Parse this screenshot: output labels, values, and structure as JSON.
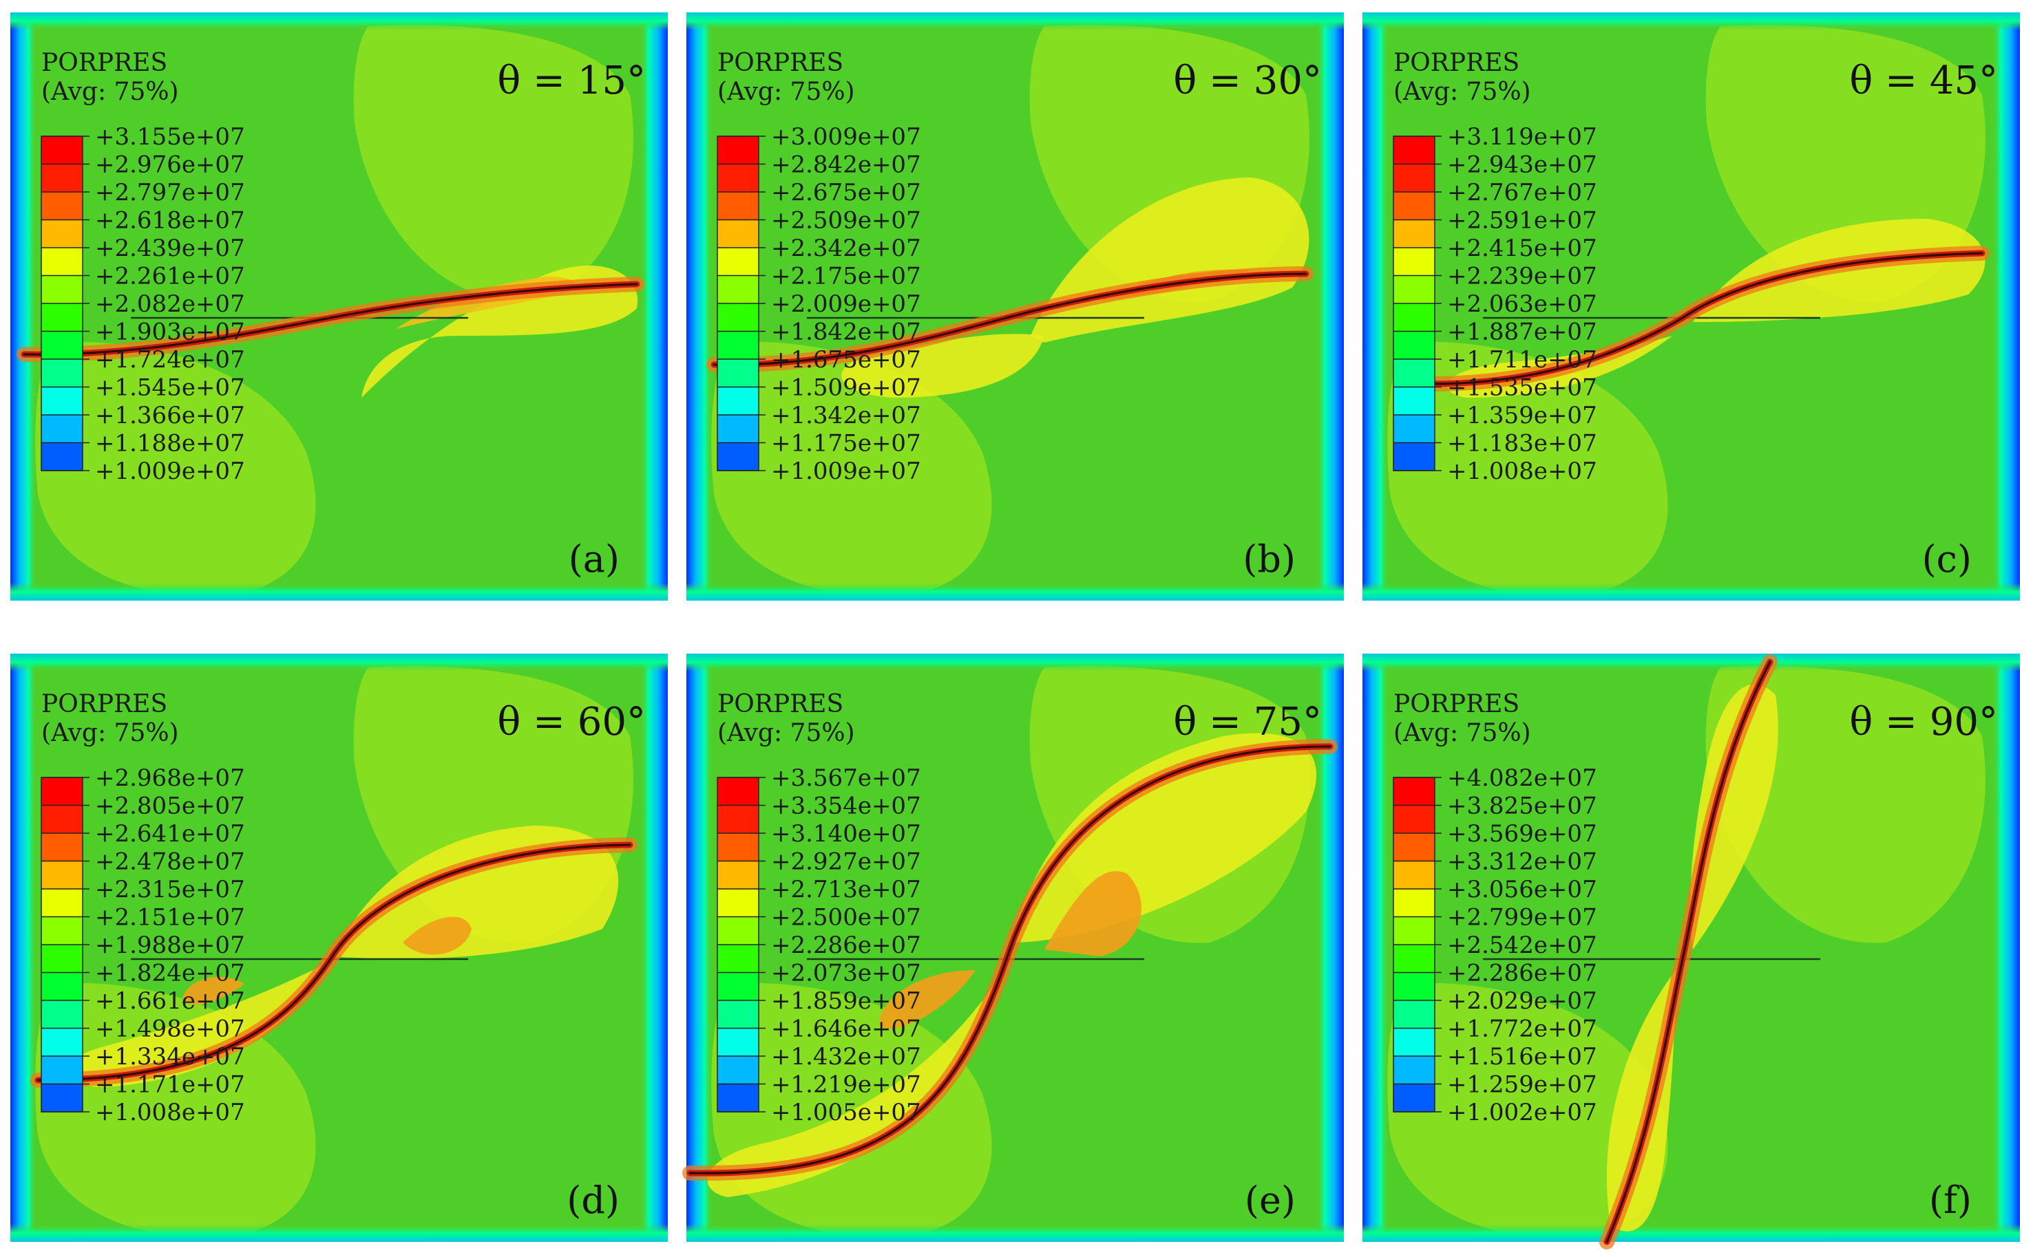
{
  "figure": {
    "colormap": [
      "#0000ff",
      "#005dff",
      "#00b9ff",
      "#00ffe8",
      "#00ff8b",
      "#00ff2e",
      "#2eff00",
      "#8bff00",
      "#e8ff00",
      "#ffb900",
      "#ff5d00",
      "#ff1f00",
      "#ff0000"
    ],
    "background_color": "#4fce2a",
    "panels": [
      {
        "id": "a",
        "legend_title": "PORPRES",
        "legend_subtitle": "(Avg: 75%)",
        "legend_values": [
          "+3.155e+07",
          "+2.976e+07",
          "+2.797e+07",
          "+2.618e+07",
          "+2.439e+07",
          "+2.261e+07",
          "+2.082e+07",
          "+1.903e+07",
          "+1.724e+07",
          "+1.545e+07",
          "+1.366e+07",
          "+1.188e+07",
          "+1.009e+07"
        ],
        "theta_label": "θ = 15°",
        "panel_tag": "(a)",
        "angle_deg": 15
      },
      {
        "id": "b",
        "legend_title": "PORPRES",
        "legend_subtitle": "(Avg: 75%)",
        "legend_values": [
          "+3.009e+07",
          "+2.842e+07",
          "+2.675e+07",
          "+2.509e+07",
          "+2.342e+07",
          "+2.175e+07",
          "+2.009e+07",
          "+1.842e+07",
          "+1.675e+07",
          "+1.509e+07",
          "+1.342e+07",
          "+1.175e+07",
          "+1.009e+07"
        ],
        "theta_label": "θ = 30°",
        "panel_tag": "(b)",
        "angle_deg": 30
      },
      {
        "id": "c",
        "legend_title": "PORPRES",
        "legend_subtitle": "(Avg: 75%)",
        "legend_values": [
          "+3.119e+07",
          "+2.943e+07",
          "+2.767e+07",
          "+2.591e+07",
          "+2.415e+07",
          "+2.239e+07",
          "+2.063e+07",
          "+1.887e+07",
          "+1.711e+07",
          "+1.535e+07",
          "+1.359e+07",
          "+1.183e+07",
          "+1.008e+07"
        ],
        "theta_label": "θ = 45°",
        "panel_tag": "(c)",
        "angle_deg": 45
      },
      {
        "id": "d",
        "legend_title": "PORPRES",
        "legend_subtitle": "(Avg: 75%)",
        "legend_values": [
          "+2.968e+07",
          "+2.805e+07",
          "+2.641e+07",
          "+2.478e+07",
          "+2.315e+07",
          "+2.151e+07",
          "+1.988e+07",
          "+1.824e+07",
          "+1.661e+07",
          "+1.498e+07",
          "+1.334e+07",
          "+1.171e+07",
          "+1.008e+07"
        ],
        "theta_label": "θ = 60°",
        "panel_tag": "(d)",
        "angle_deg": 60
      },
      {
        "id": "e",
        "legend_title": "PORPRES",
        "legend_subtitle": "(Avg: 75%)",
        "legend_values": [
          "+3.567e+07",
          "+3.354e+07",
          "+3.140e+07",
          "+2.927e+07",
          "+2.713e+07",
          "+2.500e+07",
          "+2.286e+07",
          "+2.073e+07",
          "+1.859e+07",
          "+1.646e+07",
          "+1.432e+07",
          "+1.219e+07",
          "+1.005e+07"
        ],
        "theta_label": "θ = 75°",
        "panel_tag": "(e)",
        "angle_deg": 75
      },
      {
        "id": "f",
        "legend_title": "PORPRES",
        "legend_subtitle": "(Avg: 75%)",
        "legend_values": [
          "+4.082e+07",
          "+3.825e+07",
          "+3.569e+07",
          "+3.312e+07",
          "+3.056e+07",
          "+2.799e+07",
          "+2.542e+07",
          "+2.286e+07",
          "+2.029e+07",
          "+1.772e+07",
          "+1.516e+07",
          "+1.259e+07",
          "+1.002e+07"
        ],
        "theta_label": "θ = 90°",
        "panel_tag": "(f)",
        "angle_deg": 90
      }
    ]
  }
}
